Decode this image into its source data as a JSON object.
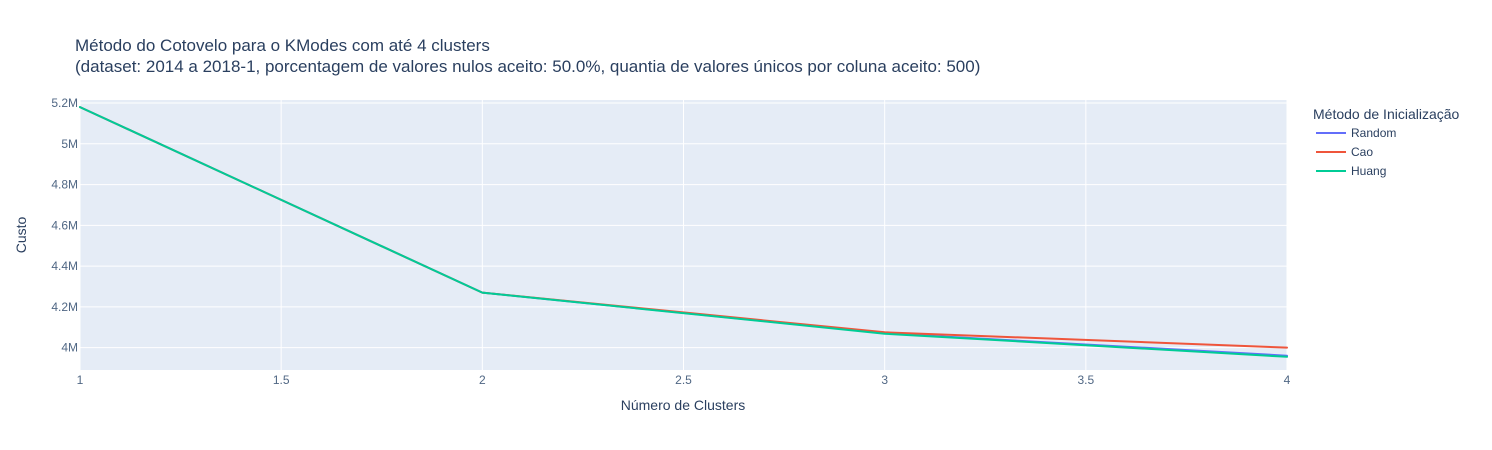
{
  "chart_data": {
    "type": "line",
    "title": "Método do Cotovelo para o KModes com até 4 clusters",
    "subtitle": "(dataset: 2014 a 2018-1, porcentagem de valores nulos aceito: 50.0%, quantia de valores únicos por coluna aceito: 500)",
    "xlabel": "Número de Clusters",
    "ylabel": "Custo",
    "xlim": [
      1,
      4
    ],
    "ylim": [
      3890000,
      5215000
    ],
    "x_ticks": [
      1,
      1.5,
      2,
      2.5,
      3,
      3.5,
      4
    ],
    "x_tick_labels": [
      "1",
      "1.5",
      "2",
      "2.5",
      "3",
      "3.5",
      "4"
    ],
    "y_ticks": [
      4000000,
      4200000,
      4400000,
      4600000,
      4800000,
      5000000,
      5200000
    ],
    "y_tick_labels": [
      "4M",
      "4.2M",
      "4.4M",
      "4.6M",
      "4.8M",
      "5M",
      "5.2M"
    ],
    "grid": true,
    "legend_title": "Método de Inicialização",
    "legend_position": "right",
    "x": [
      1,
      2,
      3,
      4
    ],
    "series": [
      {
        "name": "Random",
        "color": "#636efa",
        "values": [
          5180000,
          4270000,
          4070000,
          3960000
        ]
      },
      {
        "name": "Cao",
        "color": "#ef553b",
        "values": [
          5180000,
          4270000,
          4075000,
          4000000
        ]
      },
      {
        "name": "Huang",
        "color": "#00cc96",
        "values": [
          5180000,
          4270000,
          4068000,
          3955000
        ]
      }
    ],
    "colors": {
      "plot_background": "#e5ecf6",
      "grid": "#ffffff",
      "text": "#2a3f5f",
      "axis_text": "#506784"
    }
  }
}
